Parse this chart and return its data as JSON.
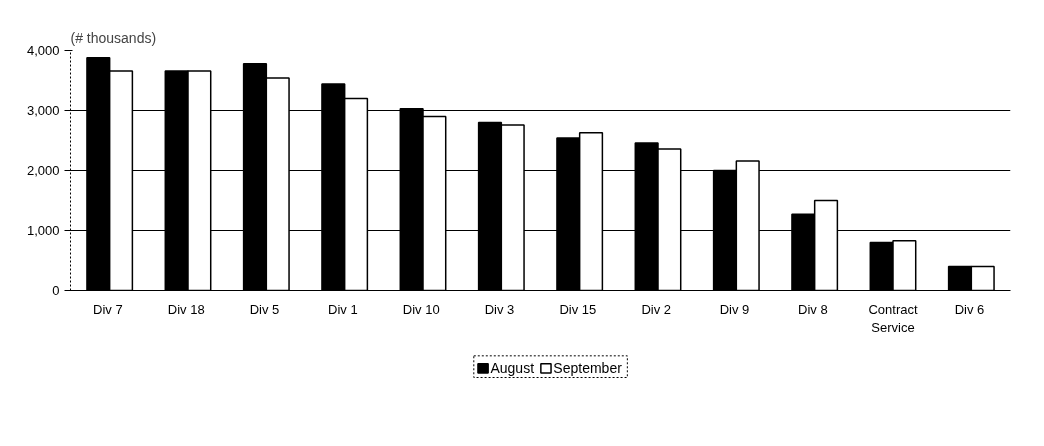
{
  "chart_data": {
    "type": "bar",
    "ylabel": "(# thousands)",
    "categories": [
      "Div  7",
      "Div  18",
      "Div  5",
      "Div  1",
      "Div  10",
      "Div  3",
      "Div  15",
      "Div  2",
      "Div  9",
      "Div  8",
      "Contract\nService",
      "Div  6"
    ],
    "series": [
      {
        "name": "August",
        "color": "#000000",
        "values": [
          3880,
          3660,
          3780,
          3440,
          3030,
          2800,
          2540,
          2460,
          2000,
          1270,
          800,
          400
        ]
      },
      {
        "name": "September",
        "color": "#ffffff",
        "values": [
          3660,
          3660,
          3540,
          3200,
          2900,
          2760,
          2630,
          2360,
          2160,
          1500,
          830,
          400
        ]
      }
    ],
    "ylim": [
      0,
      4000
    ],
    "yticks": [
      0,
      {
        "value": 1000,
        "label": "1,000"
      },
      {
        "value": 2000,
        "label": "2,000"
      },
      {
        "value": 3000,
        "label": "3,000"
      },
      {
        "value": 4000,
        "label": "4,000"
      }
    ],
    "grid": "y",
    "legend": "bottom"
  }
}
